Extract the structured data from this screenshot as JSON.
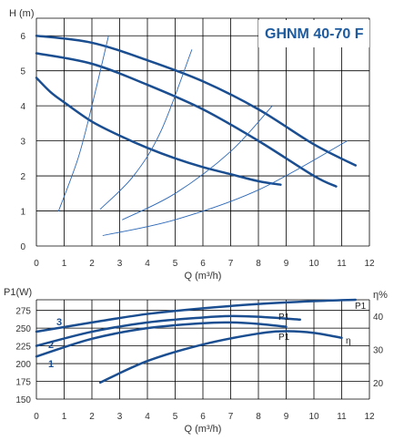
{
  "chart_data": [
    {
      "type": "line",
      "title": "GHNM 40-70 F",
      "xlabel": "Q (m³/h)",
      "ylabel": "H (m)",
      "xlim": [
        0,
        12
      ],
      "ylim": [
        0,
        6.5
      ],
      "xticks": [
        "0",
        "1",
        "2",
        "3",
        "4",
        "5",
        "6",
        "7",
        "8",
        "9",
        "10",
        "11",
        "12"
      ],
      "yticks": [
        "0",
        "1",
        "2",
        "3",
        "4",
        "5",
        "6"
      ],
      "grid": true,
      "series": [
        {
          "x": [
            0,
            2,
            4,
            6,
            8,
            10,
            11.5
          ],
          "y": [
            6.0,
            5.8,
            5.3,
            4.7,
            3.9,
            2.9,
            2.3
          ],
          "width": 2.5
        },
        {
          "x": [
            0,
            2,
            4,
            6,
            8,
            10,
            10.8
          ],
          "y": [
            5.5,
            5.2,
            4.6,
            3.9,
            3.0,
            2.0,
            1.7
          ],
          "width": 2.5
        },
        {
          "x": [
            0,
            0.5,
            1,
            2,
            3,
            4,
            5,
            6,
            7,
            8,
            8.8
          ],
          "y": [
            4.8,
            4.4,
            4.1,
            3.55,
            3.15,
            2.8,
            2.5,
            2.25,
            2.05,
            1.85,
            1.75
          ],
          "width": 2.5
        },
        {
          "x": [
            0.8,
            1.5,
            2.0,
            2.6
          ],
          "y": [
            1.0,
            2.5,
            4.0,
            6.0
          ],
          "width": 0.9
        },
        {
          "x": [
            2.3,
            3.5,
            4.5,
            5.6
          ],
          "y": [
            1.05,
            2.0,
            3.3,
            5.6
          ],
          "width": 0.9
        },
        {
          "x": [
            3.1,
            5.0,
            7.0,
            8.5
          ],
          "y": [
            0.75,
            1.5,
            2.7,
            4.0
          ],
          "width": 0.9
        },
        {
          "x": [
            2.4,
            5.0,
            8.0,
            11.2
          ],
          "y": [
            0.3,
            0.75,
            1.6,
            3.0
          ],
          "width": 0.9
        }
      ]
    },
    {
      "type": "line",
      "xlabel": "Q (m³/h)",
      "ylabel": "P1(W)",
      "y2label": "η%",
      "xlim": [
        0,
        12
      ],
      "ylim": [
        150,
        290
      ],
      "y2lim": [
        15,
        45
      ],
      "xticks": [
        "0",
        "1",
        "2",
        "3",
        "4",
        "5",
        "6",
        "7",
        "8",
        "9",
        "10",
        "11",
        "12"
      ],
      "yticks": [
        "150",
        "175",
        "200",
        "225",
        "250",
        "275"
      ],
      "y2ticks": [
        "20",
        "30",
        "40"
      ],
      "grid": true,
      "series": [
        {
          "name": "3",
          "x": [
            0,
            2,
            4,
            6,
            8,
            10,
            11.5
          ],
          "y": [
            245,
            258,
            270,
            278,
            284,
            288,
            290
          ]
        },
        {
          "name": "2",
          "x": [
            0,
            2,
            4,
            6,
            7,
            8,
            9.5
          ],
          "y": [
            225,
            245,
            258,
            265,
            267,
            266,
            262
          ]
        },
        {
          "name": "1",
          "x": [
            0,
            2,
            4,
            6,
            7,
            8,
            9
          ],
          "y": [
            210,
            235,
            250,
            257,
            258,
            256,
            252
          ]
        },
        {
          "name": "η",
          "axis": "right",
          "x": [
            2.3,
            4,
            6,
            8,
            9,
            10,
            11
          ],
          "y": [
            20,
            26.5,
            31.5,
            34.8,
            35.5,
            35,
            33.5
          ]
        }
      ],
      "curve_labels": [
        "3",
        "2",
        "1"
      ],
      "annotations": [
        "P1",
        "P1",
        "P1",
        "η"
      ]
    }
  ]
}
